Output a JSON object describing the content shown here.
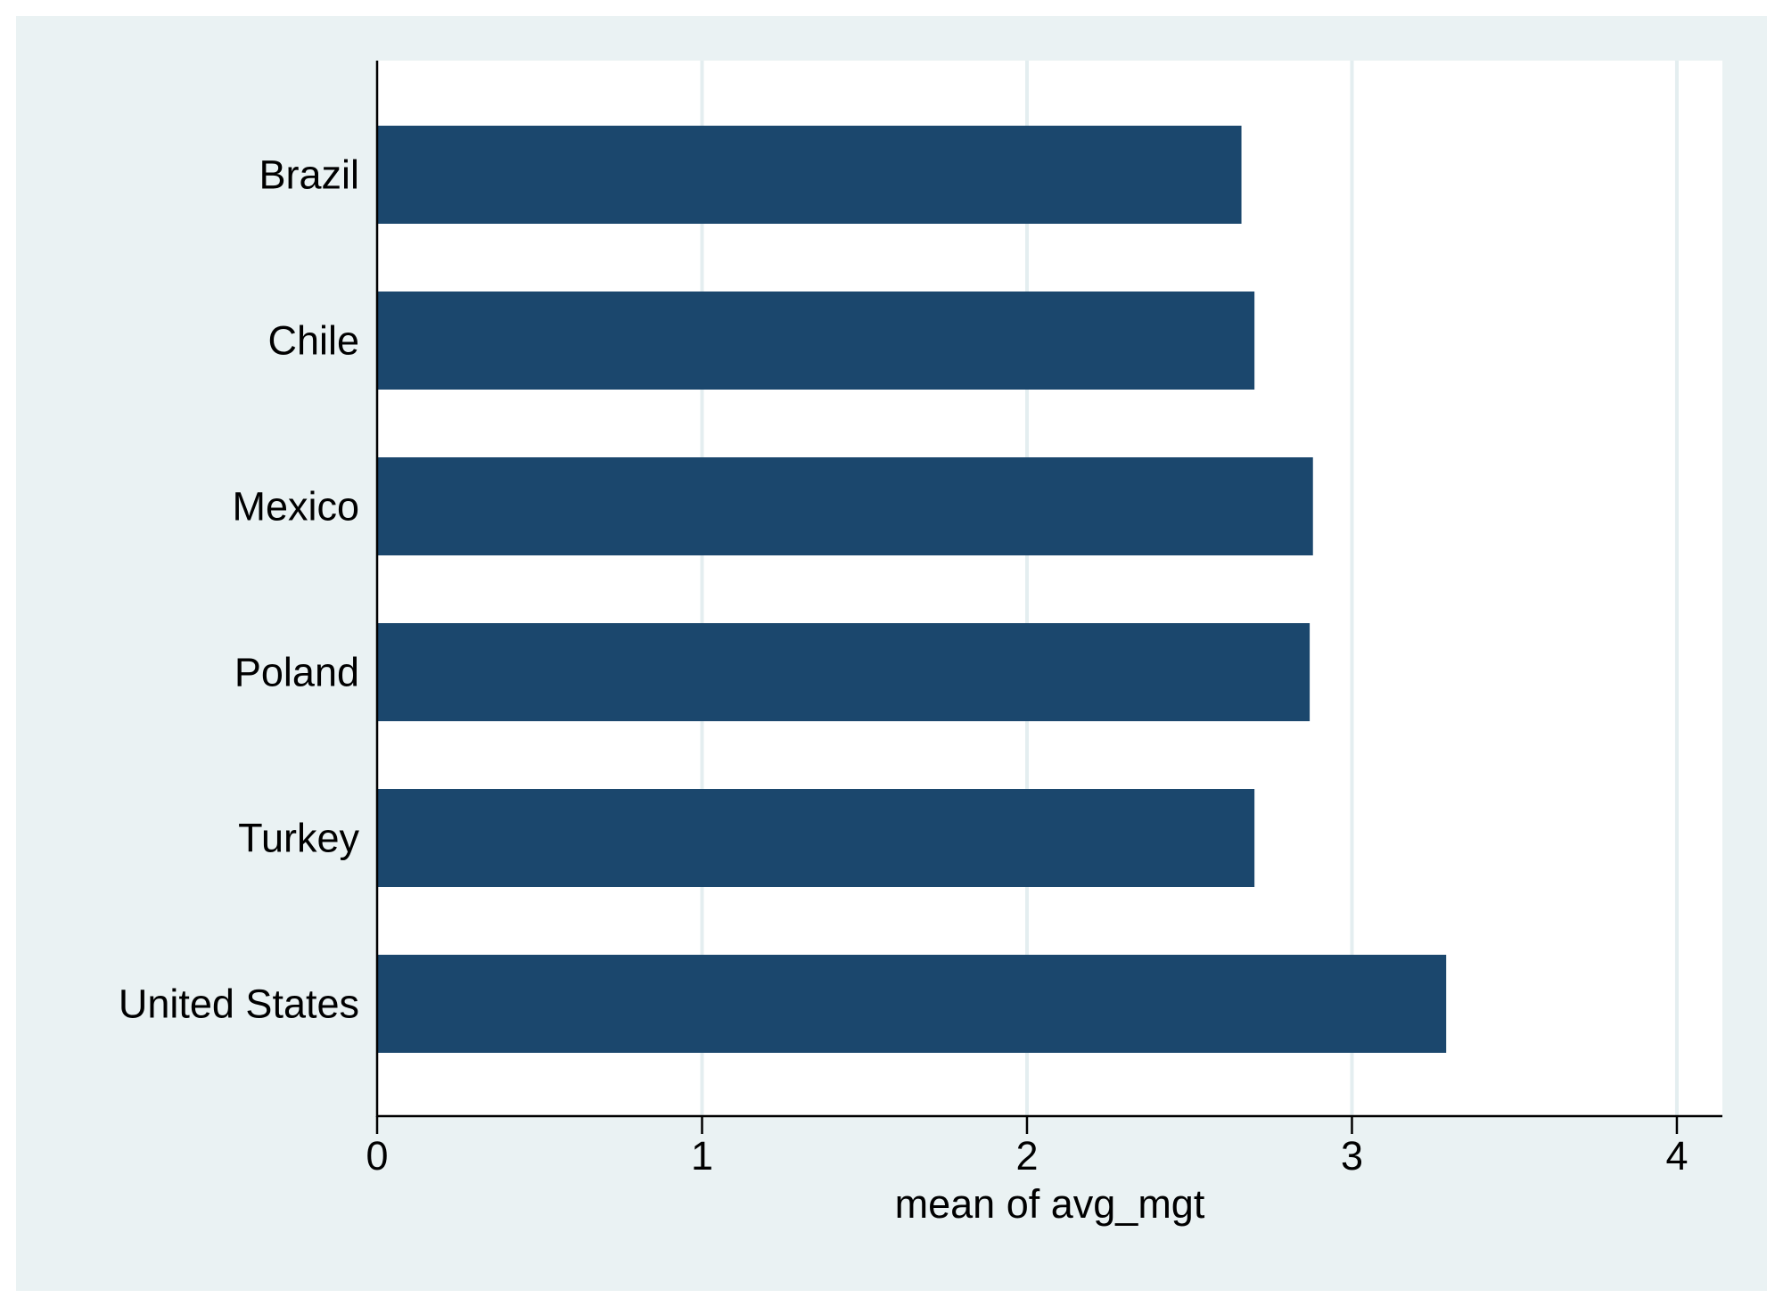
{
  "colors": {
    "outer_background": "#eaf2f3",
    "plot_background": "#ffffff",
    "gridline": "#e4eef0",
    "bar": "#1b476d",
    "axis": "#000000"
  },
  "chart_data": {
    "type": "bar",
    "orientation": "horizontal",
    "categories": [
      "Brazil",
      "Chile",
      "Mexico",
      "Poland",
      "Turkey",
      "United States"
    ],
    "series": [
      {
        "values": [
          2.66,
          2.7,
          2.88,
          2.87,
          2.7,
          3.29
        ]
      }
    ],
    "title": "",
    "xlabel": "mean of avg_mgt",
    "ylabel": "",
    "xlim": [
      0,
      4.14
    ],
    "x_ticks": [
      0,
      1,
      2,
      3,
      4
    ],
    "x_tick_labels": [
      "0",
      "1",
      "2",
      "3",
      "4"
    ],
    "grid": true,
    "legend": "none"
  }
}
